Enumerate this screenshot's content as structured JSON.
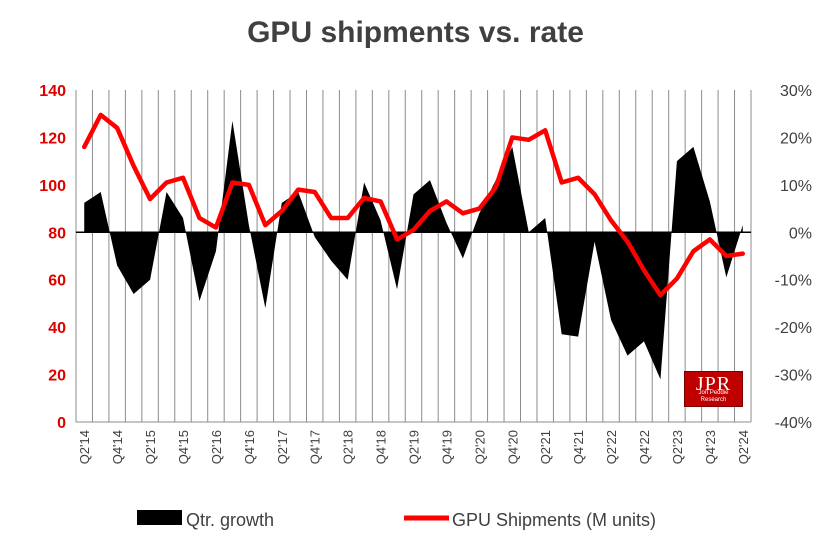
{
  "chart_data": {
    "type": "line",
    "title": "GPU shipments vs. rate",
    "x": [
      "Q2'14",
      "Q3'14",
      "Q4'14",
      "Q1'15",
      "Q2'15",
      "Q3'15",
      "Q4'15",
      "Q1'16",
      "Q2'16",
      "Q3'16",
      "Q4'16",
      "Q1'17",
      "Q2'17",
      "Q3'17",
      "Q4'17",
      "Q1'18",
      "Q2'18",
      "Q3'18",
      "Q4'18",
      "Q1'19",
      "Q2'19",
      "Q3'19",
      "Q4'19",
      "Q1'20",
      "Q2'20",
      "Q3'20",
      "Q4'20",
      "Q1'21",
      "Q2'21",
      "Q3'21",
      "Q4'21",
      "Q1'22",
      "Q2'22",
      "Q3'22",
      "Q4'22",
      "Q1'23",
      "Q2'23",
      "Q3'23",
      "Q4'23",
      "Q1'24",
      "Q2'24"
    ],
    "x_tick_labels": [
      "Q2'14",
      "Q4'14",
      "Q2'15",
      "Q4'15",
      "Q2'16",
      "Q4'16",
      "Q2'17",
      "Q4'17",
      "Q2'18",
      "Q4'18",
      "Q2'19",
      "Q4'19",
      "Q2'20",
      "Q4'20",
      "Q2'21",
      "Q4'21",
      "Q2'22",
      "Q4'22",
      "Q2'23",
      "Q4'23",
      "Q2'24"
    ],
    "series": [
      {
        "name": "Qtr. growth",
        "axis": "right",
        "render": "area",
        "color": "#000000",
        "unit": "%",
        "values": [
          6.2,
          8.5,
          -7.0,
          -13.0,
          -10.0,
          8.5,
          3.0,
          -14.5,
          -4.0,
          23.5,
          1.5,
          -16.0,
          6.2,
          8.5,
          -1.0,
          -6.0,
          -10.0,
          10.5,
          2.5,
          -12.0,
          8.0,
          11.0,
          2.0,
          -5.5,
          4.0,
          11.0,
          18.0,
          0.0,
          3.0,
          -21.5,
          -22.0,
          -2.0,
          -18.5,
          -26.0,
          -23.0,
          -31.0,
          15.0,
          18.0,
          6.5,
          -9.5,
          1.5
        ]
      },
      {
        "name": "GPU Shipments (M units)",
        "axis": "left",
        "render": "line",
        "color": "#ff0000",
        "values": [
          116,
          129.5,
          124,
          108,
          94,
          101,
          103,
          86,
          82,
          101,
          100,
          83,
          89,
          98,
          97,
          86,
          86,
          94.5,
          93,
          77,
          81,
          89,
          93,
          88,
          90,
          99,
          120,
          119,
          123,
          101,
          103,
          96,
          85,
          76,
          64,
          53.5,
          60.5,
          72,
          77,
          70,
          71
        ]
      }
    ],
    "y_left": {
      "min": 0,
      "max": 140,
      "ticks": [
        "0",
        "20",
        "40",
        "60",
        "80",
        "100",
        "120",
        "140"
      ],
      "tick_color": "#e00000"
    },
    "y_right": {
      "min": -40,
      "max": 30,
      "ticks": [
        "-40%",
        "-30%",
        "-20%",
        "-10%",
        "0%",
        "10%",
        "20%",
        "30%"
      ]
    },
    "grid": "vertical",
    "legend": "bottom"
  },
  "legend": {
    "growth_label": "Qtr. growth",
    "shipments_label": "GPU Shipments (M units)"
  },
  "logo": {
    "text": "JPR",
    "subtext": "Jon Peddie Research"
  }
}
